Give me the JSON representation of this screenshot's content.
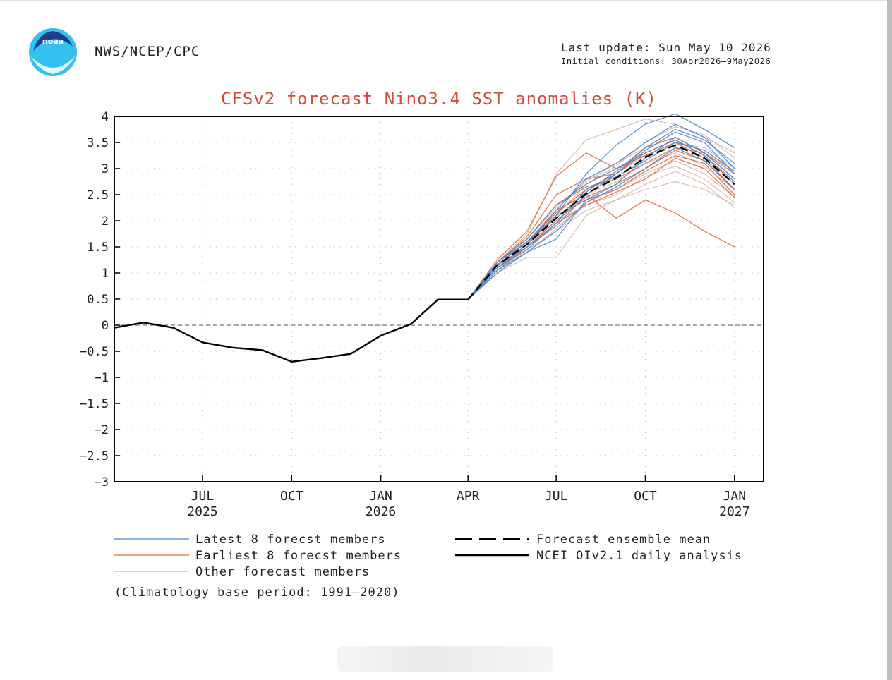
{
  "header": {
    "agency": "NWS/NCEP/CPC",
    "last_update": "Last update: Sun May 10 2026",
    "initial_conditions": "Initial conditions: 30Apr2026–9May2026",
    "logo_text": "noaa"
  },
  "colors": {
    "title": "#d2493a",
    "latest": "#4a86d0",
    "earliest": "#e06a3e",
    "other": "#d6b0a6",
    "analysis": "#000000"
  },
  "chart_data": {
    "type": "line",
    "title": "CFSv2 forecast Nino3.4 SST anomalies (K)",
    "xlabel": "",
    "ylabel": "",
    "ylim": [
      -3,
      4
    ],
    "yticks": [
      "4",
      "3.5",
      "3",
      "2.5",
      "2",
      "1.5",
      "1",
      "0.5",
      "0",
      "−0.5",
      "−1",
      "−1.5",
      "−2",
      "−2.5",
      "−3"
    ],
    "ytick_values": [
      4,
      3.5,
      3,
      2.5,
      2,
      1.5,
      1,
      0.5,
      0,
      -0.5,
      -1,
      -1.5,
      -2,
      -2.5,
      -3
    ],
    "xlim": [
      "2025-04-01",
      "2027-01-31"
    ],
    "xticks": [
      {
        "date": "2025-07-01",
        "label": "JUL",
        "year": "2025"
      },
      {
        "date": "2025-10-01",
        "label": "OCT",
        "year": ""
      },
      {
        "date": "2026-01-01",
        "label": "JAN",
        "year": "2026"
      },
      {
        "date": "2026-04-01",
        "label": "APR",
        "year": ""
      },
      {
        "date": "2026-07-01",
        "label": "JUL",
        "year": ""
      },
      {
        "date": "2026-10-01",
        "label": "OCT",
        "year": ""
      },
      {
        "date": "2027-01-01",
        "label": "JAN",
        "year": "2027"
      }
    ],
    "grid": true,
    "zero_line": true,
    "series": [
      {
        "name": "NCEI OIv2.1 daily analysis",
        "group": "analysis",
        "x": [
          "2025-04-01",
          "2025-05-01",
          "2025-06-01",
          "2025-07-01",
          "2025-08-01",
          "2025-09-01",
          "2025-10-01",
          "2025-11-01",
          "2025-12-01",
          "2026-01-01",
          "2026-02-01",
          "2026-03-01",
          "2026-04-01"
        ],
        "y": [
          -0.05,
          0.05,
          -0.05,
          -0.33,
          -0.43,
          -0.48,
          -0.7,
          -0.63,
          -0.55,
          -0.2,
          0.02,
          0.49,
          0.49
        ]
      },
      {
        "name": "Forecast ensemble mean",
        "group": "mean",
        "x": [
          "2026-04-01",
          "2026-05-01",
          "2026-06-01",
          "2026-07-01",
          "2026-08-01",
          "2026-09-01",
          "2026-10-01",
          "2026-11-01",
          "2026-12-01",
          "2027-01-01"
        ],
        "y": [
          0.49,
          1.15,
          1.55,
          2.05,
          2.52,
          2.82,
          3.22,
          3.45,
          3.2,
          2.7
        ]
      }
    ],
    "members": [
      {
        "group": "latest",
        "y": [
          0.49,
          1.2,
          1.6,
          2.1,
          2.9,
          3.45,
          3.85,
          4.05,
          3.75,
          3.4
        ]
      },
      {
        "group": "latest",
        "y": [
          0.49,
          1.1,
          1.55,
          2.2,
          2.8,
          3.1,
          3.5,
          3.85,
          3.6,
          3.0
        ]
      },
      {
        "group": "latest",
        "y": [
          0.49,
          1.15,
          1.5,
          1.9,
          2.5,
          2.9,
          3.35,
          3.7,
          3.5,
          2.9
        ]
      },
      {
        "group": "latest",
        "y": [
          0.49,
          1.05,
          1.4,
          1.65,
          2.4,
          2.7,
          3.2,
          3.6,
          3.3,
          2.8
        ]
      },
      {
        "group": "latest",
        "y": [
          0.49,
          1.2,
          1.65,
          2.3,
          2.7,
          3.0,
          3.3,
          3.55,
          3.25,
          2.75
        ]
      },
      {
        "group": "latest",
        "y": [
          0.49,
          1.1,
          1.45,
          1.95,
          2.6,
          2.85,
          3.15,
          3.5,
          3.35,
          2.95
        ]
      },
      {
        "group": "latest",
        "y": [
          0.49,
          1.0,
          1.4,
          1.8,
          2.35,
          2.65,
          3.0,
          3.4,
          3.15,
          2.6
        ]
      },
      {
        "group": "latest",
        "y": [
          0.49,
          1.15,
          1.6,
          2.05,
          2.55,
          2.95,
          3.4,
          3.75,
          3.55,
          3.1
        ]
      },
      {
        "group": "earliest",
        "y": [
          0.49,
          1.25,
          1.8,
          2.85,
          3.3,
          3.0,
          3.25,
          3.5,
          3.2,
          2.6
        ]
      },
      {
        "group": "earliest",
        "y": [
          0.49,
          1.2,
          1.7,
          2.5,
          2.8,
          2.9,
          3.4,
          3.6,
          3.3,
          2.9
        ]
      },
      {
        "group": "earliest",
        "y": [
          0.49,
          1.15,
          1.6,
          2.2,
          2.5,
          2.05,
          2.4,
          2.15,
          1.8,
          1.5
        ]
      },
      {
        "group": "earliest",
        "y": [
          0.49,
          1.1,
          1.55,
          2.1,
          2.4,
          2.6,
          2.95,
          3.25,
          3.1,
          2.5
        ]
      },
      {
        "group": "earliest",
        "y": [
          0.49,
          1.2,
          1.65,
          2.3,
          2.65,
          2.8,
          3.1,
          3.4,
          3.3,
          2.8
        ]
      },
      {
        "group": "earliest",
        "y": [
          0.49,
          1.05,
          1.5,
          1.95,
          2.3,
          2.55,
          2.8,
          3.2,
          3.0,
          2.45
        ]
      },
      {
        "group": "earliest",
        "y": [
          0.49,
          1.15,
          1.6,
          2.15,
          2.6,
          2.9,
          3.3,
          3.55,
          3.25,
          2.7
        ]
      },
      {
        "group": "earliest",
        "y": [
          0.49,
          1.1,
          1.5,
          2.0,
          2.45,
          2.7,
          3.0,
          3.35,
          3.15,
          2.6
        ]
      },
      {
        "group": "other",
        "y": [
          0.49,
          1.0,
          1.3,
          1.3,
          2.1,
          2.4,
          2.6,
          2.75,
          2.6,
          2.3
        ]
      },
      {
        "group": "other",
        "y": [
          0.49,
          1.2,
          1.75,
          2.9,
          3.55,
          3.75,
          3.95,
          3.85,
          3.6,
          3.3
        ]
      },
      {
        "group": "other",
        "y": [
          0.49,
          1.1,
          1.5,
          2.0,
          2.3,
          2.5,
          2.85,
          3.05,
          2.8,
          2.35
        ]
      },
      {
        "group": "other",
        "y": [
          0.49,
          1.15,
          1.6,
          2.1,
          2.7,
          3.05,
          3.5,
          3.8,
          3.65,
          3.2
        ]
      },
      {
        "group": "other",
        "y": [
          0.49,
          1.05,
          1.45,
          1.8,
          2.2,
          2.4,
          2.7,
          2.95,
          2.7,
          2.25
        ]
      },
      {
        "group": "other",
        "y": [
          0.49,
          1.2,
          1.65,
          2.25,
          2.75,
          3.1,
          3.4,
          3.6,
          3.3,
          2.95
        ]
      },
      {
        "group": "other",
        "y": [
          0.49,
          1.1,
          1.55,
          2.0,
          2.5,
          2.75,
          3.1,
          3.3,
          3.05,
          2.6
        ]
      },
      {
        "group": "other",
        "y": [
          0.49,
          1.15,
          1.6,
          2.15,
          2.6,
          2.9,
          3.25,
          3.5,
          3.4,
          3.0
        ]
      },
      {
        "group": "other",
        "y": [
          0.49,
          1.05,
          1.4,
          1.85,
          2.35,
          2.6,
          2.9,
          3.15,
          2.9,
          2.45
        ]
      }
    ],
    "member_x": [
      "2026-04-01",
      "2026-05-01",
      "2026-06-01",
      "2026-07-01",
      "2026-08-01",
      "2026-09-01",
      "2026-10-01",
      "2026-11-01",
      "2026-12-01",
      "2027-01-01"
    ],
    "legend": {
      "latest": "Latest 8 forecst members",
      "earliest": "Earliest 8 forecst members",
      "other": "Other forecast members",
      "mean": "Forecast ensemble mean",
      "analysis": "NCEI OIv2.1 daily analysis",
      "placement": "bottom"
    },
    "footnote": "(Climatology base period: 1991–2020)"
  }
}
